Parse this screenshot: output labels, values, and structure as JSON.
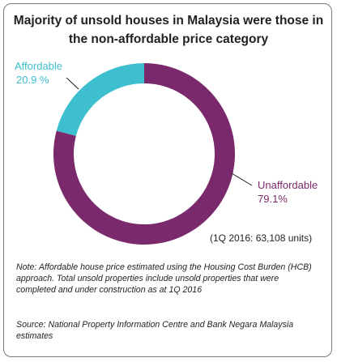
{
  "title": "Majority of unsold houses in Malaysia were those in the non-affordable price category",
  "chart_data": {
    "type": "pie",
    "style": "donut",
    "total_label": "(1Q 2016: 63,108 units)",
    "slices": [
      {
        "name": "Affordable",
        "value_label": "20.9 %",
        "value": 20.9,
        "color": "#3dbfcf"
      },
      {
        "name": "Unaffordable",
        "value_label": "79.1%",
        "value": 79.1,
        "color": "#7a2a6c"
      }
    ],
    "legend": "direct labels",
    "grid": false
  },
  "note": "Note: Affordable house price estimated using the Housing Cost Burden (HCB) approach. Total unsold properties include unsold properties that were completed and under construction as at 1Q 2016",
  "source": "Source: National Property Information Centre and Bank Negara Malaysia estimates"
}
